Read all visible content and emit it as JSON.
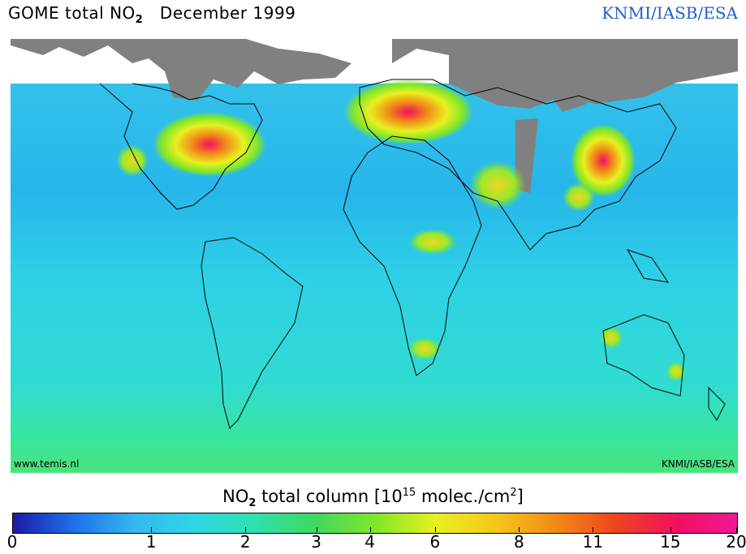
{
  "header": {
    "title_main": "GOME total NO",
    "title_sub": "2",
    "title_period": "December 1999",
    "credit": "KNMI/IASB/ESA"
  },
  "map": {
    "website": "www.temis.nl",
    "credit": "KNMI/IASB/ESA",
    "colors": {
      "land_missing": "#808080",
      "ocean_background": "#2ec6e0",
      "outline": "#000000"
    }
  },
  "colorbar": {
    "title_prefix": "NO",
    "title_sub": "2",
    "title_mid": " total column [10",
    "title_exp": "15",
    "title_units": " molec./cm",
    "title_units_exp": "2",
    "title_suffix": "]",
    "ticks": [
      "0",
      "1",
      "2",
      "3",
      "4",
      "6",
      "8",
      "11",
      "15",
      "20"
    ],
    "tick_fractions": [
      0.0,
      0.192,
      0.322,
      0.42,
      0.494,
      0.584,
      0.7,
      0.802,
      0.909,
      1.0
    ],
    "colors": [
      "#1a1aa8",
      "#1f6fe8",
      "#35b6f0",
      "#2fd6e6",
      "#2fe0b0",
      "#3fd860",
      "#7ee62a",
      "#e8f020",
      "#f6c61c",
      "#f28a16",
      "#ee4420",
      "#f01060",
      "#f01894"
    ]
  }
}
